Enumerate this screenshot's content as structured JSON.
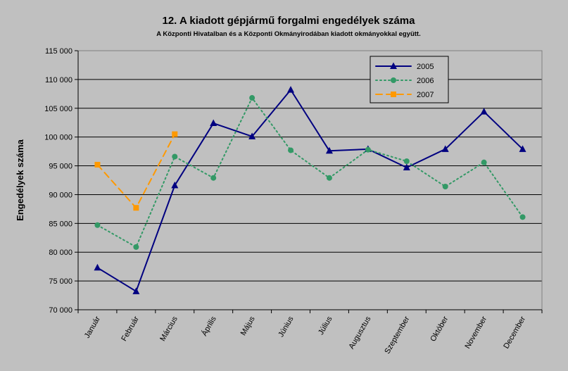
{
  "chart_data": {
    "type": "line",
    "title": "12. A  kiadott gépjármű forgalmi engedélyek száma",
    "subtitle": "A  Központi Hivatalban és a Központi Okmányirodában kiadott okmányokkal együtt.",
    "ylabel": "Engedélyek száma",
    "xlabel": "",
    "ylim": [
      70000,
      115000
    ],
    "y_ticks": [
      70000,
      75000,
      80000,
      85000,
      90000,
      95000,
      100000,
      105000,
      110000,
      115000
    ],
    "y_tick_labels": [
      "70 000",
      "75 000",
      "80 000",
      "85 000",
      "90 000",
      "95 000",
      "100 000",
      "105 000",
      "110 000",
      "115 000"
    ],
    "grid": true,
    "legend_position": "top-right",
    "categories": [
      "Január",
      "Február",
      "Március",
      "Április",
      "Május",
      "Június",
      "Július",
      "Augusztus",
      "Szeptember",
      "Október",
      "November",
      "December"
    ],
    "series": [
      {
        "name": "2005",
        "color": "#000080",
        "line_style": "solid",
        "marker": "triangle",
        "values": [
          77300,
          73200,
          91600,
          102400,
          100100,
          108200,
          97600,
          97900,
          94700,
          97900,
          104400,
          97900
        ]
      },
      {
        "name": "2006",
        "color": "#339966",
        "line_style": "dotted",
        "marker": "circle",
        "values": [
          84700,
          80900,
          96600,
          92900,
          106800,
          97700,
          92900,
          97800,
          95800,
          91400,
          95600,
          86100
        ]
      },
      {
        "name": "2007",
        "color": "#ff9900",
        "line_style": "dashed",
        "marker": "square",
        "values": [
          95200,
          87700,
          100500,
          null,
          null,
          null,
          null,
          null,
          null,
          null,
          null,
          null
        ]
      }
    ]
  }
}
